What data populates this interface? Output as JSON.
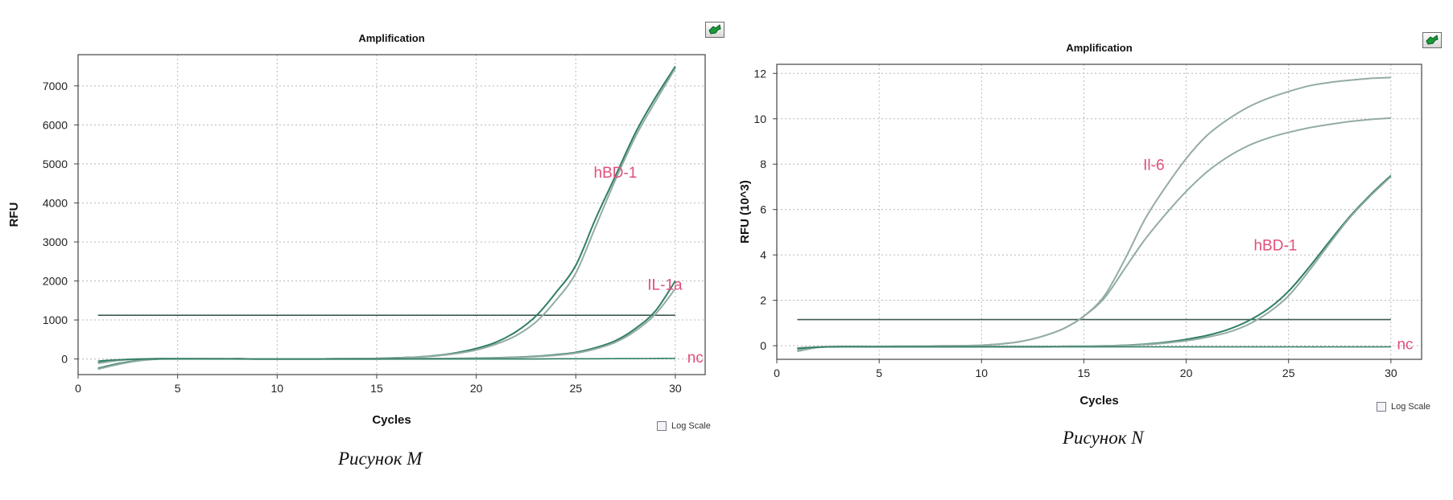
{
  "chart_data": [
    {
      "type": "line",
      "title": "Amplification",
      "xlabel": "Cycles",
      "ylabel": "RFU",
      "xlim": [
        0,
        31.5
      ],
      "ylim": [
        -400,
        7800
      ],
      "xticks": [
        0,
        5,
        10,
        15,
        20,
        25,
        30
      ],
      "yticks": [
        0,
        1000,
        2000,
        3000,
        4000,
        5000,
        6000,
        7000
      ],
      "grid": true,
      "threshold": 1120,
      "annotations": [
        {
          "text": "hBD-1",
          "x": 25.9,
          "y": 4650
        },
        {
          "text": "IL-1a",
          "x": 28.6,
          "y": 1770
        },
        {
          "text": "nc",
          "x": 30.6,
          "y": -90
        }
      ],
      "series": [
        {
          "name": "hBD-1",
          "x": [
            1,
            2,
            3,
            4,
            5,
            6,
            7,
            8,
            9,
            10,
            11,
            12,
            13,
            14,
            15,
            16,
            17,
            18,
            19,
            20,
            21,
            22,
            23,
            24,
            25,
            26,
            27,
            28,
            29,
            30
          ],
          "values": [
            -90,
            -30,
            0,
            10,
            10,
            10,
            5,
            5,
            0,
            0,
            0,
            0,
            5,
            10,
            15,
            30,
            50,
            90,
            160,
            270,
            430,
            700,
            1100,
            1700,
            2400,
            3600,
            4700,
            5800,
            6700,
            7500
          ]
        },
        {
          "name": "hBD-1",
          "x": [
            1,
            2,
            3,
            4,
            5,
            6,
            7,
            8,
            9,
            10,
            11,
            12,
            13,
            14,
            15,
            16,
            17,
            18,
            19,
            20,
            21,
            22,
            23,
            24,
            25,
            26,
            27,
            28,
            29,
            30
          ],
          "values": [
            -110,
            -40,
            -5,
            5,
            10,
            10,
            5,
            5,
            0,
            0,
            0,
            0,
            5,
            10,
            15,
            25,
            45,
            80,
            140,
            230,
            380,
            600,
            950,
            1500,
            2200,
            3400,
            4600,
            5700,
            6600,
            7450
          ]
        },
        {
          "name": "IL-1a",
          "x": [
            1,
            2,
            3,
            4,
            5,
            6,
            7,
            8,
            9,
            10,
            11,
            12,
            13,
            14,
            15,
            16,
            17,
            18,
            19,
            20,
            21,
            22,
            23,
            24,
            25,
            26,
            27,
            28,
            29,
            30
          ],
          "values": [
            -240,
            -120,
            -40,
            0,
            10,
            10,
            5,
            5,
            0,
            0,
            0,
            0,
            0,
            0,
            0,
            5,
            5,
            10,
            15,
            20,
            30,
            45,
            70,
            110,
            170,
            290,
            470,
            780,
            1230,
            2000
          ]
        },
        {
          "name": "IL-1a",
          "x": [
            1,
            2,
            3,
            4,
            5,
            6,
            7,
            8,
            9,
            10,
            11,
            12,
            13,
            14,
            15,
            16,
            17,
            18,
            19,
            20,
            21,
            22,
            23,
            24,
            25,
            26,
            27,
            28,
            29,
            30
          ],
          "values": [
            -260,
            -140,
            -50,
            -5,
            5,
            5,
            5,
            0,
            0,
            0,
            0,
            0,
            0,
            0,
            0,
            0,
            5,
            10,
            10,
            15,
            25,
            40,
            60,
            95,
            150,
            260,
            430,
            720,
            1150,
            1800
          ]
        },
        {
          "name": "nc",
          "x": [
            1,
            2,
            3,
            4,
            5,
            6,
            7,
            8,
            9,
            10,
            11,
            12,
            13,
            14,
            15,
            16,
            17,
            18,
            19,
            20,
            21,
            22,
            23,
            24,
            25,
            26,
            27,
            28,
            29,
            30
          ],
          "values": [
            -50,
            -20,
            -5,
            0,
            0,
            0,
            0,
            0,
            0,
            0,
            0,
            0,
            0,
            0,
            0,
            0,
            0,
            0,
            0,
            0,
            0,
            0,
            0,
            5,
            5,
            5,
            10,
            10,
            15,
            15
          ]
        }
      ]
    },
    {
      "type": "line",
      "title": "Amplification",
      "xlabel": "Cycles",
      "ylabel": "RFU (10^3)",
      "xlim": [
        0,
        31.5
      ],
      "ylim": [
        -0.6,
        12.4
      ],
      "xticks": [
        0,
        5,
        10,
        15,
        20,
        25,
        30
      ],
      "yticks": [
        0,
        2,
        4,
        6,
        8,
        10,
        12
      ],
      "grid": true,
      "threshold": 1.15,
      "annotations": [
        {
          "text": "Il-6",
          "x": 17.9,
          "y": 7.75
        },
        {
          "text": "hBD-1",
          "x": 23.3,
          "y": 4.2
        },
        {
          "text": "nc",
          "x": 30.3,
          "y": -0.15
        }
      ],
      "series": [
        {
          "name": "Il-6",
          "x": [
            1,
            2,
            3,
            4,
            5,
            6,
            7,
            8,
            9,
            10,
            11,
            12,
            13,
            14,
            15,
            16,
            17,
            18,
            19,
            20,
            21,
            22,
            23,
            24,
            25,
            26,
            27,
            28,
            29,
            30
          ],
          "values": [
            -0.25,
            -0.08,
            -0.04,
            -0.03,
            -0.03,
            -0.02,
            -0.02,
            -0.01,
            0,
            0.02,
            0.08,
            0.2,
            0.42,
            0.75,
            1.3,
            2.2,
            3.8,
            5.6,
            7.0,
            8.25,
            9.25,
            9.95,
            10.5,
            10.9,
            11.2,
            11.45,
            11.6,
            11.7,
            11.78,
            11.82
          ]
        },
        {
          "name": "Il-6",
          "x": [
            1,
            2,
            3,
            4,
            5,
            6,
            7,
            8,
            9,
            10,
            11,
            12,
            13,
            14,
            15,
            16,
            17,
            18,
            19,
            20,
            21,
            22,
            23,
            24,
            25,
            26,
            27,
            28,
            29,
            30
          ],
          "values": [
            -0.2,
            -0.06,
            -0.03,
            -0.03,
            -0.03,
            -0.02,
            -0.02,
            -0.01,
            0,
            0.02,
            0.08,
            0.2,
            0.42,
            0.75,
            1.3,
            2.1,
            3.4,
            4.7,
            5.8,
            6.8,
            7.65,
            8.3,
            8.8,
            9.15,
            9.4,
            9.6,
            9.75,
            9.88,
            9.97,
            10.03
          ]
        },
        {
          "name": "hBD-1",
          "x": [
            1,
            2,
            3,
            4,
            5,
            6,
            7,
            8,
            9,
            10,
            11,
            12,
            13,
            14,
            15,
            16,
            17,
            18,
            19,
            20,
            21,
            22,
            23,
            24,
            25,
            26,
            27,
            28,
            29,
            30
          ],
          "values": [
            -0.12,
            -0.06,
            -0.04,
            -0.04,
            -0.04,
            -0.04,
            -0.04,
            -0.04,
            -0.04,
            -0.04,
            -0.04,
            -0.04,
            -0.04,
            -0.03,
            -0.02,
            -0.01,
            0.02,
            0.07,
            0.15,
            0.28,
            0.45,
            0.7,
            1.08,
            1.62,
            2.4,
            3.45,
            4.6,
            5.7,
            6.65,
            7.5
          ]
        },
        {
          "name": "hBD-1",
          "x": [
            1,
            2,
            3,
            4,
            5,
            6,
            7,
            8,
            9,
            10,
            11,
            12,
            13,
            14,
            15,
            16,
            17,
            18,
            19,
            20,
            21,
            22,
            23,
            24,
            25,
            26,
            27,
            28,
            29,
            30
          ],
          "values": [
            -0.1,
            -0.05,
            -0.04,
            -0.04,
            -0.04,
            -0.04,
            -0.04,
            -0.04,
            -0.04,
            -0.04,
            -0.04,
            -0.04,
            -0.04,
            -0.03,
            -0.02,
            -0.01,
            0.01,
            0.05,
            0.12,
            0.22,
            0.37,
            0.58,
            0.92,
            1.45,
            2.2,
            3.3,
            4.5,
            5.65,
            6.6,
            7.45
          ]
        },
        {
          "name": "nc",
          "x": [
            1,
            2,
            3,
            4,
            5,
            6,
            7,
            8,
            9,
            10,
            11,
            12,
            13,
            14,
            15,
            16,
            17,
            18,
            19,
            20,
            21,
            22,
            23,
            24,
            25,
            26,
            27,
            28,
            29,
            30
          ],
          "values": [
            -0.12,
            -0.07,
            -0.05,
            -0.05,
            -0.05,
            -0.05,
            -0.05,
            -0.05,
            -0.05,
            -0.05,
            -0.05,
            -0.05,
            -0.05,
            -0.05,
            -0.05,
            -0.05,
            -0.05,
            -0.05,
            -0.05,
            -0.05,
            -0.05,
            -0.05,
            -0.05,
            -0.05,
            -0.05,
            -0.05,
            -0.05,
            -0.05,
            -0.05,
            -0.05
          ]
        }
      ]
    }
  ],
  "panels": [
    {
      "log_scale_label": "Log Scale",
      "log_scale_checked": false,
      "caption": "Рисунок M",
      "export_icon": "export-chart-icon"
    },
    {
      "log_scale_label": "Log Scale",
      "log_scale_checked": false,
      "caption": "Рисунок N",
      "export_icon": "export-chart-icon"
    }
  ],
  "colors": {
    "curve_dark": "#2f7f62",
    "curve_light": "#93aca3",
    "threshold": "#3e5a50",
    "grid": "#b8b8b8",
    "annotation": "#e0507a",
    "frame": "#444444"
  }
}
